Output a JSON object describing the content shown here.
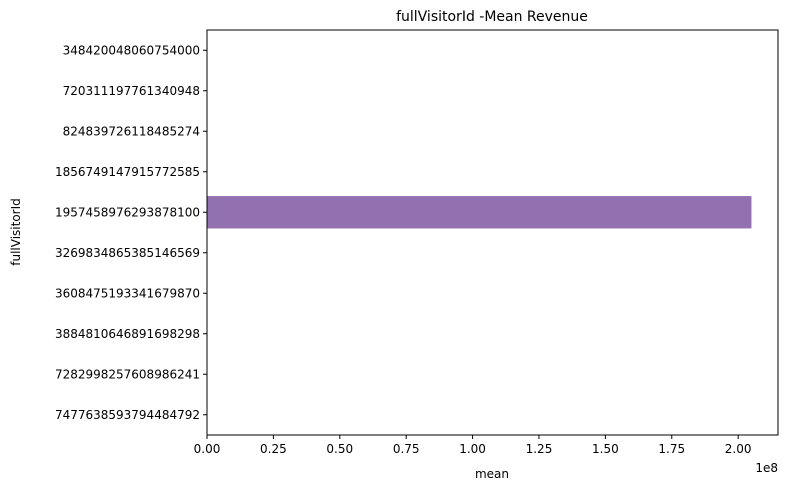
{
  "chart_data": {
    "type": "bar",
    "orientation": "horizontal",
    "title": "fullVisitorId -Mean Revenue",
    "xlabel": "mean",
    "ylabel": "fullVisitorId",
    "x_scale_label": "1e8",
    "xlim": [
      0,
      215000000
    ],
    "x_ticks": [
      0,
      25000000,
      50000000,
      75000000,
      100000000,
      125000000,
      150000000,
      175000000,
      200000000
    ],
    "x_tick_labels": [
      "0.00",
      "0.25",
      "0.50",
      "0.75",
      "1.00",
      "1.25",
      "1.50",
      "1.75",
      "2.00"
    ],
    "categories": [
      "348420048060754000",
      "720311197761340948",
      "824839726118485274",
      "1856749147915772585",
      "1957458976293878100",
      "3269834865385146569",
      "3608475193341679870",
      "3884810646891698298",
      "7282998257608986241",
      "7477638593794484792"
    ],
    "values": [
      0,
      0,
      0,
      0,
      205000000,
      0,
      0,
      0,
      0,
      0
    ],
    "bar_color": "#9370b0",
    "grid": false
  }
}
